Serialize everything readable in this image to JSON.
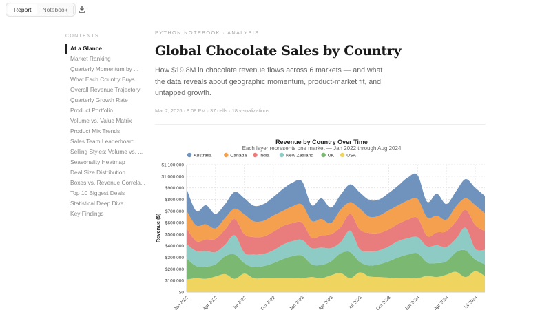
{
  "toolbar": {
    "tabs": [
      "Report",
      "Notebook"
    ],
    "active_tab": "Report",
    "download_icon": "download-icon"
  },
  "sidebar": {
    "heading": "CONTENTS",
    "items": [
      "At a Glance",
      "Market Ranking",
      "Quarterly Momentum by ...",
      "What Each Country Buys",
      "Overall Revenue Trajectory",
      "Quarterly Growth Rate",
      "Product Portfolio",
      "Volume vs. Value Matrix",
      "Product Mix Trends",
      "Sales Team Leaderboard",
      "Selling Styles: Volume vs. ...",
      "Seasonality Heatmap",
      "Deal Size Distribution",
      "Boxes vs. Revenue Correla...",
      "Top 10 Biggest Deals",
      "Statistical Deep Dive",
      "Key Findings"
    ],
    "active": "At a Glance"
  },
  "header": {
    "kicker": "PYTHON NOTEBOOK · ANALYSIS",
    "title": "Global Chocolate Sales by Country",
    "description": "How $19.8M in chocolate revenue flows across 6 markets — and what the data reveals about geographic momentum, product-market fit, and untapped growth.",
    "meta": "Mar 2, 2026 · 8:08 PM · 37 cells · 18 visualizations"
  },
  "chart_data": {
    "type": "area",
    "stacked": true,
    "title": "Revenue by Country Over Time",
    "subtitle": "Each layer represents one market — Jan 2022 through Aug 2024",
    "ylabel": "Revenue ($)",
    "xlabel": "",
    "ylim": [
      0,
      1100000
    ],
    "yticks": [
      "$0",
      "$100,000",
      "$200,000",
      "$300,000",
      "$400,000",
      "$500,000",
      "$600,000",
      "$700,000",
      "$800,000",
      "$900,000",
      "$1,000,000",
      "$1,100,000"
    ],
    "xticks": [
      "Jan 2022",
      "Apr 2022",
      "Jul 2022",
      "Oct 2022",
      "Jan 2023",
      "Apr 2023",
      "Jul 2023",
      "Oct 2023",
      "Jan 2024",
      "Apr 2024",
      "Jul 2024"
    ],
    "x": [
      "2022-01",
      "2022-02",
      "2022-03",
      "2022-04",
      "2022-05",
      "2022-06",
      "2022-07",
      "2022-08",
      "2022-09",
      "2022-10",
      "2022-11",
      "2022-12",
      "2023-01",
      "2023-02",
      "2023-03",
      "2023-04",
      "2023-05",
      "2023-06",
      "2023-07",
      "2023-08",
      "2023-09",
      "2023-10",
      "2023-11",
      "2023-12",
      "2024-01",
      "2024-02",
      "2024-03",
      "2024-04",
      "2024-05",
      "2024-06",
      "2024-07",
      "2024-08"
    ],
    "grid": true,
    "legend": "top-left",
    "series": [
      {
        "name": "USA",
        "color": "#f0d460",
        "values": [
          110000,
          120000,
          115000,
          135000,
          155000,
          115000,
          160000,
          120000,
          120000,
          120000,
          120000,
          120000,
          120000,
          130000,
          120000,
          145000,
          165000,
          120000,
          170000,
          135000,
          130000,
          125000,
          120000,
          120000,
          120000,
          140000,
          130000,
          150000,
          175000,
          130000,
          180000,
          140000
        ]
      },
      {
        "name": "UK",
        "color": "#7bb972",
        "values": [
          180000,
          105000,
          105000,
          105000,
          155000,
          210000,
          90000,
          95000,
          105000,
          130000,
          165000,
          190000,
          195000,
          110000,
          115000,
          120000,
          170000,
          225000,
          90000,
          95000,
          110000,
          140000,
          180000,
          205000,
          215000,
          115000,
          120000,
          115000,
          170000,
          230000,
          100000,
          100000
        ]
      },
      {
        "name": "New Zealand",
        "color": "#8ecbc4",
        "values": [
          125000,
          130000,
          135000,
          105000,
          100000,
          165000,
          90000,
          110000,
          105000,
          110000,
          125000,
          130000,
          135000,
          140000,
          150000,
          115000,
          95000,
          185000,
          110000,
          120000,
          120000,
          130000,
          140000,
          140000,
          140000,
          140000,
          155000,
          125000,
          115000,
          195000,
          95000,
          125000
        ]
      },
      {
        "name": "India",
        "color": "#e97c7c",
        "values": [
          135000,
          85000,
          100000,
          115000,
          130000,
          140000,
          160000,
          150000,
          150000,
          160000,
          160000,
          155000,
          150000,
          90000,
          105000,
          120000,
          130000,
          145000,
          170000,
          160000,
          150000,
          145000,
          150000,
          160000,
          165000,
          90000,
          110000,
          135000,
          150000,
          155000,
          205000,
          160000
        ]
      },
      {
        "name": "Canada",
        "color": "#f5a04f",
        "values": [
          150000,
          135000,
          130000,
          90000,
          100000,
          90000,
          170000,
          135000,
          135000,
          140000,
          130000,
          145000,
          155000,
          145000,
          140000,
          95000,
          150000,
          100000,
          180000,
          140000,
          150000,
          165000,
          160000,
          165000,
          165000,
          160000,
          145000,
          100000,
          130000,
          100000,
          170000,
          155000
        ]
      },
      {
        "name": "Australia",
        "color": "#7093bd",
        "values": [
          190000,
          125000,
          165000,
          125000,
          120000,
          145000,
          140000,
          135000,
          145000,
          160000,
          190000,
          205000,
          200000,
          135000,
          180000,
          135000,
          130000,
          155000,
          140000,
          145000,
          140000,
          150000,
          170000,
          200000,
          205000,
          135000,
          190000,
          135000,
          130000,
          165000,
          150000,
          150000
        ]
      }
    ],
    "legend_order": [
      "Australia",
      "Canada",
      "India",
      "New Zealand",
      "UK",
      "USA"
    ]
  }
}
